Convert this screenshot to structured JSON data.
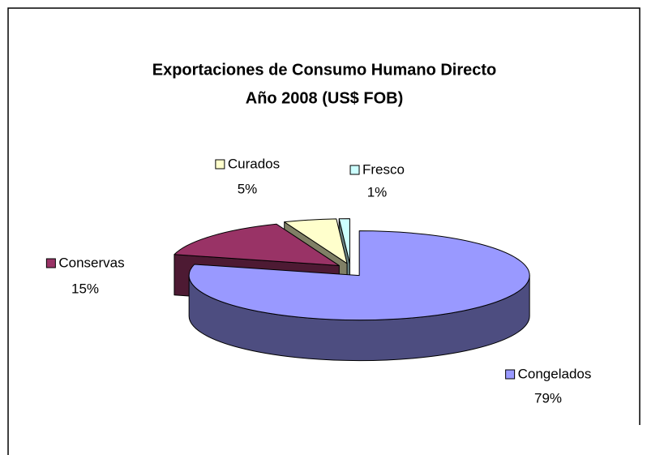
{
  "chart_data": {
    "type": "pie",
    "title": "Exportaciones de Consumo Humano Directo",
    "subtitle": "Año 2008 (US$ FOB)",
    "categories": [
      "Congelados",
      "Conservas",
      "Curados",
      "Fresco"
    ],
    "values": [
      79,
      15,
      5,
      1
    ],
    "value_labels": [
      "79%",
      "15%",
      "5%",
      "1%"
    ],
    "colors": [
      "#9999ff",
      "#993366",
      "#ffffcc",
      "#ccffff"
    ]
  }
}
